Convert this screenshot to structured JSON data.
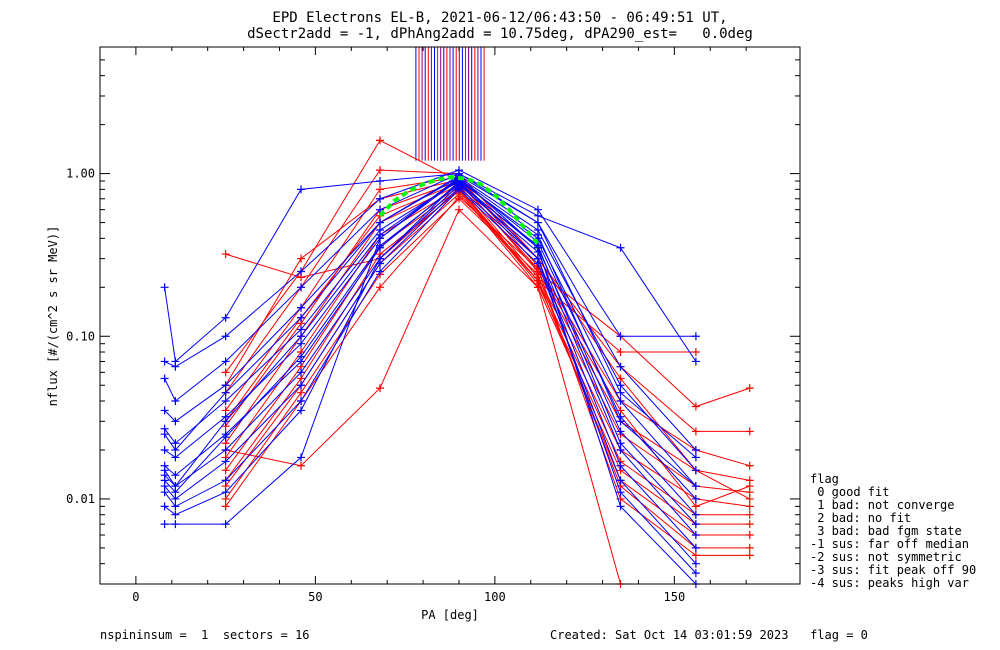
{
  "header": {
    "title_line1": "EPD Electrons EL-B, 2021-06-12/06:43:50 - 06:49:51 UT,",
    "title_line2": "dSectr2add = -1, dPhAng2add = 10.75deg, dPA290_est=   0.0deg"
  },
  "footer": {
    "left": "nspininsum =  1  sectors = 16",
    "right": "Created: Sat Oct 14 03:01:59 2023   flag = 0"
  },
  "legend": {
    "title": "flag",
    "items": [
      " 0 good fit",
      " 1 bad: not converge",
      " 2 bad: no fit",
      " 3 bad: bad fgm state",
      "-1 sus: far off median",
      "-2 sus: not symmetric",
      "-3 sus: fit peak off 90",
      "-4 sus: peaks high var"
    ]
  },
  "colors": {
    "blue": "#0000ff",
    "red": "#ff0000",
    "purple": "#7f007f",
    "fit": "#00ff00"
  },
  "chart_data": {
    "type": "line",
    "xlabel": "PA [deg]",
    "ylabel": "nflux [#/(cm^2 s sr MeV)]",
    "xlim": [
      -10,
      185
    ],
    "ylim": [
      0.003,
      6.0
    ],
    "yscale": "log",
    "xticks": [
      0,
      50,
      100,
      150
    ],
    "xtick_labels": [
      "0",
      "50",
      "100",
      "150"
    ],
    "yticks": [
      0.01,
      0.1,
      1.0
    ],
    "ytick_labels": [
      "0.01",
      "0.10",
      "1.00"
    ],
    "grid": false,
    "series_pa": [
      8,
      11,
      25,
      46,
      68,
      90,
      112,
      135,
      156,
      171
    ],
    "series": [
      {
        "color": "blue",
        "values": [
          0.2,
          0.07,
          0.13,
          0.8,
          0.9,
          1.0,
          0.55,
          0.35,
          0.07,
          null
        ]
      },
      {
        "color": "blue",
        "values": [
          0.07,
          0.065,
          0.1,
          0.25,
          0.7,
          1.05,
          0.6,
          0.1,
          0.1,
          null
        ]
      },
      {
        "color": "blue",
        "values": [
          0.055,
          0.04,
          0.07,
          0.2,
          0.6,
          1.0,
          0.5,
          0.065,
          0.02,
          null
        ]
      },
      {
        "color": "blue",
        "values": [
          0.035,
          0.03,
          0.05,
          0.15,
          0.5,
          0.95,
          0.45,
          0.05,
          0.015,
          null
        ]
      },
      {
        "color": "blue",
        "values": [
          0.027,
          0.022,
          0.04,
          0.11,
          0.45,
          0.9,
          0.4,
          0.04,
          0.012,
          null
        ]
      },
      {
        "color": "blue",
        "values": [
          0.02,
          0.018,
          0.032,
          0.09,
          0.4,
          0.92,
          0.38,
          0.032,
          0.01,
          null
        ]
      },
      {
        "color": "blue",
        "values": [
          0.016,
          0.014,
          0.025,
          0.07,
          0.35,
          0.88,
          0.35,
          0.026,
          0.008,
          null
        ]
      },
      {
        "color": "blue",
        "values": [
          0.014,
          0.012,
          0.02,
          0.06,
          0.3,
          0.85,
          0.33,
          0.02,
          0.006,
          null
        ]
      },
      {
        "color": "blue",
        "values": [
          0.012,
          0.01,
          0.017,
          0.05,
          0.28,
          0.82,
          0.3,
          0.016,
          0.005,
          null
        ]
      },
      {
        "color": "blue",
        "values": [
          0.011,
          0.009,
          0.013,
          0.04,
          0.25,
          0.8,
          0.28,
          0.013,
          0.004,
          null
        ]
      },
      {
        "color": "blue",
        "values": [
          0.009,
          0.008,
          0.011,
          0.035,
          0.3,
          0.9,
          0.3,
          0.011,
          0.0035,
          null
        ]
      },
      {
        "color": "blue",
        "values": [
          0.007,
          0.007,
          0.007,
          0.018,
          0.4,
          0.95,
          0.35,
          0.009,
          0.003,
          null
        ]
      },
      {
        "color": "blue",
        "values": [
          0.015,
          0.012,
          0.03,
          0.1,
          0.42,
          0.93,
          0.42,
          0.03,
          0.012,
          null
        ]
      },
      {
        "color": "blue",
        "values": [
          0.025,
          0.02,
          0.045,
          0.13,
          0.5,
          0.97,
          0.5,
          0.045,
          0.018,
          null
        ]
      },
      {
        "color": "blue",
        "values": [
          0.013,
          0.011,
          0.024,
          0.075,
          0.36,
          0.86,
          0.36,
          0.022,
          0.007,
          null
        ]
      },
      {
        "color": "red",
        "values": [
          null,
          null,
          0.32,
          0.23,
          0.3,
          0.8,
          0.22,
          0.08,
          0.08,
          null
        ]
      },
      {
        "color": "red",
        "values": [
          null,
          null,
          0.06,
          0.25,
          1.6,
          0.9,
          0.25,
          0.1,
          0.037,
          0.048
        ]
      },
      {
        "color": "red",
        "values": [
          null,
          null,
          0.045,
          0.2,
          1.05,
          1.0,
          0.3,
          0.065,
          0.026,
          0.026
        ]
      },
      {
        "color": "red",
        "values": [
          null,
          null,
          0.035,
          0.15,
          0.8,
          0.95,
          0.27,
          0.04,
          0.02,
          0.016
        ]
      },
      {
        "color": "red",
        "values": [
          null,
          null,
          0.028,
          0.12,
          0.6,
          0.9,
          0.25,
          0.03,
          0.015,
          0.013
        ]
      },
      {
        "color": "red",
        "values": [
          null,
          null,
          0.022,
          0.1,
          0.5,
          0.85,
          0.23,
          0.025,
          0.012,
          0.011
        ]
      },
      {
        "color": "red",
        "values": [
          null,
          null,
          0.018,
          0.08,
          0.42,
          0.82,
          0.22,
          0.02,
          0.01,
          0.009
        ]
      },
      {
        "color": "red",
        "values": [
          null,
          null,
          0.015,
          0.065,
          0.36,
          0.8,
          0.21,
          0.017,
          0.008,
          0.008
        ]
      },
      {
        "color": "red",
        "values": [
          null,
          null,
          0.013,
          0.055,
          0.32,
          0.78,
          0.2,
          0.015,
          0.007,
          0.007
        ]
      },
      {
        "color": "red",
        "values": [
          null,
          null,
          0.012,
          0.05,
          0.28,
          0.75,
          0.22,
          0.013,
          0.006,
          0.006
        ]
      },
      {
        "color": "red",
        "values": [
          null,
          null,
          0.01,
          0.045,
          0.24,
          0.7,
          0.24,
          0.012,
          0.005,
          0.005
        ]
      },
      {
        "color": "red",
        "values": [
          null,
          null,
          0.009,
          0.04,
          0.2,
          0.72,
          0.26,
          0.01,
          0.0045,
          0.0045
        ]
      },
      {
        "color": "red",
        "values": [
          null,
          null,
          0.02,
          0.016,
          0.048,
          0.6,
          0.2,
          0.003,
          null,
          null
        ]
      },
      {
        "color": "red",
        "values": [
          null,
          null,
          0.05,
          0.3,
          0.7,
          0.92,
          0.3,
          0.055,
          0.015,
          0.01
        ]
      },
      {
        "color": "red",
        "values": [
          null,
          null,
          0.03,
          0.13,
          0.55,
          0.88,
          0.26,
          0.035,
          0.009,
          0.012
        ]
      }
    ],
    "fit_curve": {
      "color": "fit",
      "x": [
        68,
        72,
        76,
        80,
        84,
        88,
        92,
        96,
        100,
        104,
        108,
        112
      ],
      "y": [
        0.55,
        0.68,
        0.78,
        0.86,
        0.92,
        0.95,
        0.93,
        0.86,
        0.74,
        0.6,
        0.47,
        0.37
      ]
    },
    "spike_x_range": [
      78,
      97
    ],
    "spike_y_base": 1.2
  }
}
